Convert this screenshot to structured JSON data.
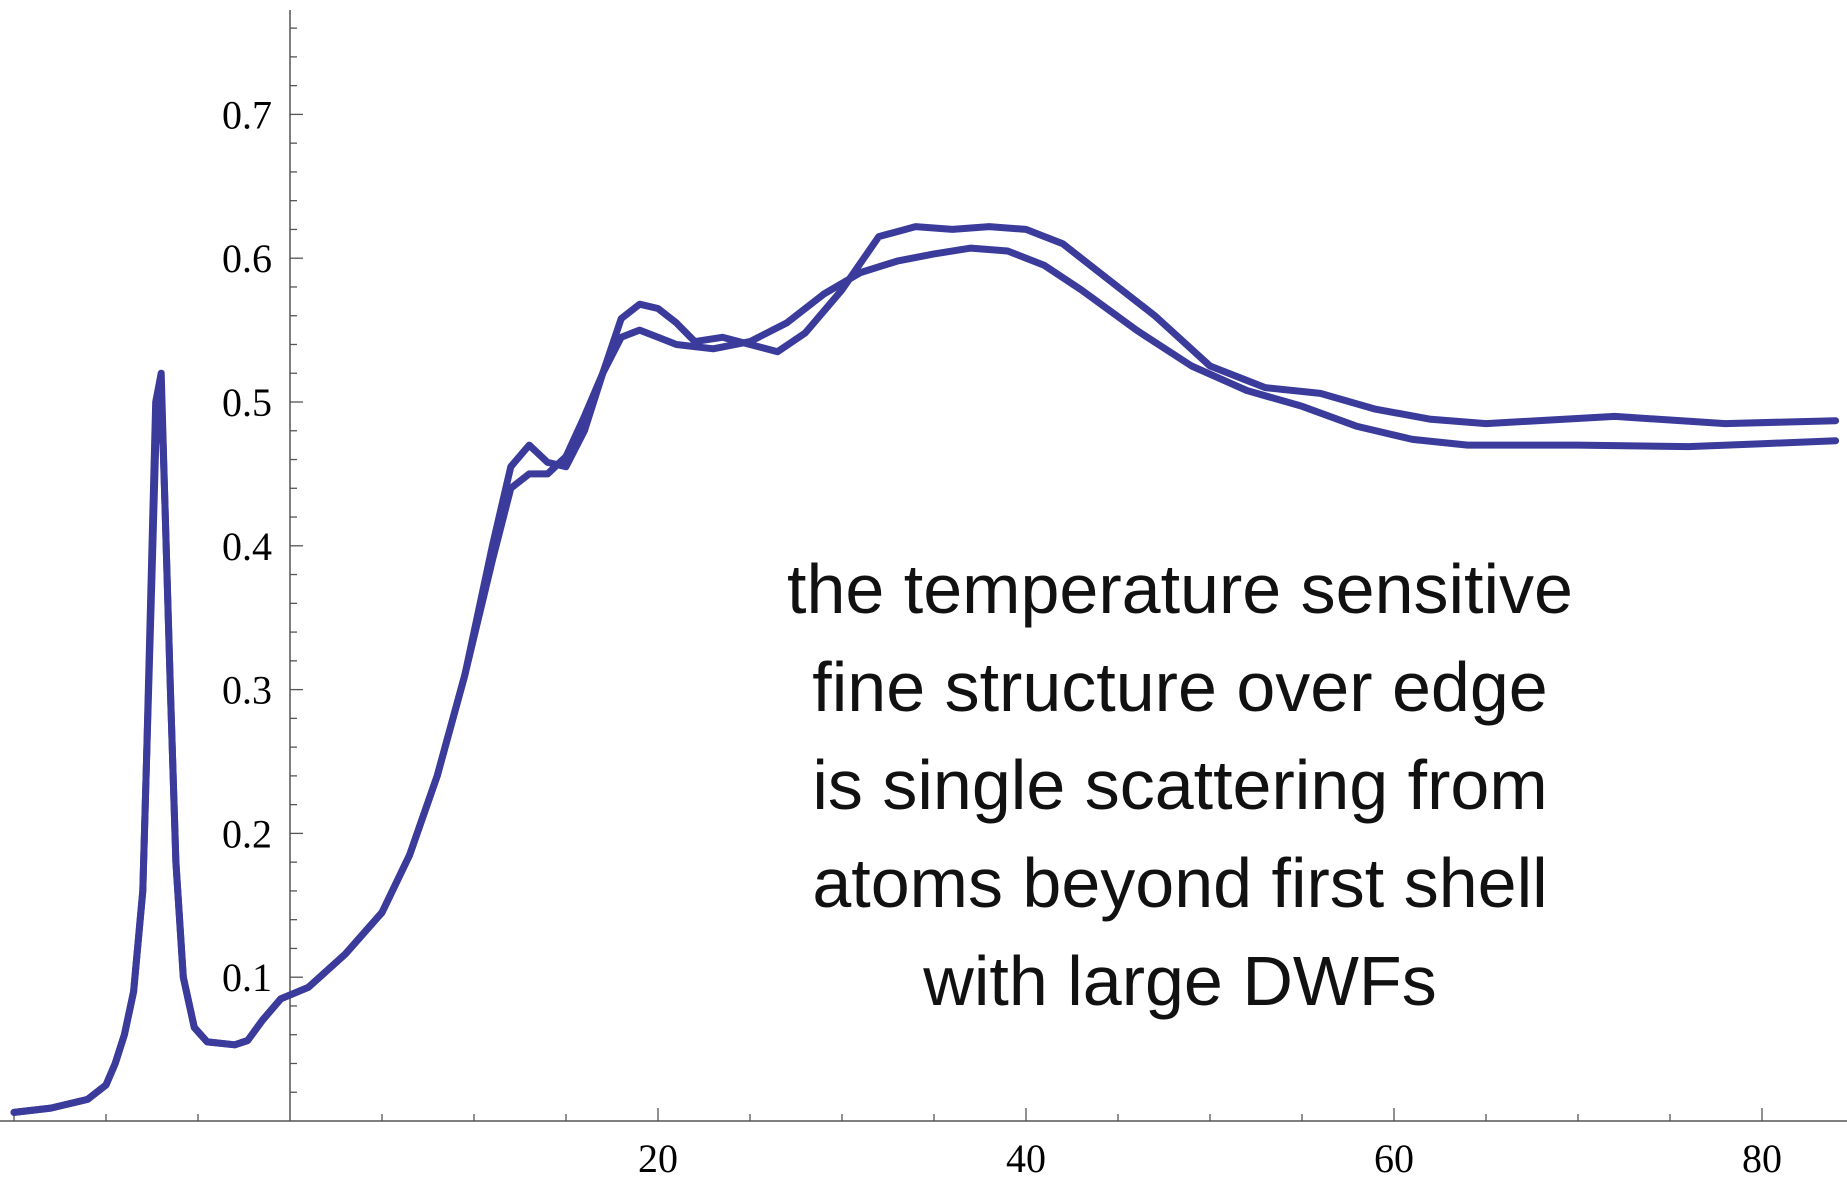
{
  "chart_data": {
    "type": "line",
    "title": "",
    "xlabel": "",
    "ylabel": "",
    "xlim": [
      -15,
      84
    ],
    "ylim": [
      0,
      0.77
    ],
    "x_ticks": [
      20,
      40,
      60,
      80
    ],
    "y_ticks": [
      0.1,
      0.2,
      0.3,
      0.4,
      0.5,
      0.6,
      0.7
    ],
    "line_color": "#3b3b9c",
    "grid": false,
    "legend": "none",
    "series": [
      {
        "points": [
          [
            -15,
            0.006
          ],
          [
            -13,
            0.009
          ],
          [
            -11,
            0.015
          ],
          [
            -10,
            0.025
          ],
          [
            -9.5,
            0.04
          ],
          [
            -9,
            0.06
          ],
          [
            -8.5,
            0.09
          ],
          [
            -8,
            0.16
          ],
          [
            -7.8,
            0.25
          ],
          [
            -7.5,
            0.38
          ],
          [
            -7.3,
            0.47
          ],
          [
            -7,
            0.51
          ],
          [
            -6.8,
            0.43
          ],
          [
            -6.5,
            0.3
          ],
          [
            -6.2,
            0.18
          ],
          [
            -5.8,
            0.1
          ],
          [
            -5.2,
            0.065
          ],
          [
            -4.5,
            0.055
          ],
          [
            -3,
            0.053
          ],
          [
            -2.3,
            0.056
          ],
          [
            -1.5,
            0.07
          ],
          [
            -0.5,
            0.085
          ],
          [
            1,
            0.093
          ],
          [
            3,
            0.116
          ],
          [
            5,
            0.145
          ],
          [
            6.5,
            0.185
          ],
          [
            8,
            0.24
          ],
          [
            9.5,
            0.31
          ],
          [
            11,
            0.39
          ],
          [
            12,
            0.44
          ],
          [
            13,
            0.45
          ],
          [
            14,
            0.45
          ],
          [
            15,
            0.462
          ],
          [
            16,
            0.49
          ],
          [
            17,
            0.52
          ],
          [
            18,
            0.545
          ],
          [
            19,
            0.55
          ],
          [
            20,
            0.545
          ],
          [
            21,
            0.54
          ],
          [
            23,
            0.537
          ],
          [
            25,
            0.542
          ],
          [
            27,
            0.555
          ],
          [
            29,
            0.575
          ],
          [
            31,
            0.59
          ],
          [
            33,
            0.598
          ],
          [
            35,
            0.603
          ],
          [
            37,
            0.607
          ],
          [
            39,
            0.605
          ],
          [
            41,
            0.595
          ],
          [
            43,
            0.578
          ],
          [
            46,
            0.55
          ],
          [
            49,
            0.525
          ],
          [
            52,
            0.508
          ],
          [
            55,
            0.497
          ],
          [
            58,
            0.483
          ],
          [
            61,
            0.474
          ],
          [
            64,
            0.47
          ],
          [
            70,
            0.47
          ],
          [
            76,
            0.469
          ],
          [
            80,
            0.471
          ],
          [
            84,
            0.473
          ]
        ]
      },
      {
        "points": [
          [
            -15,
            0.006
          ],
          [
            -13,
            0.009
          ],
          [
            -11,
            0.015
          ],
          [
            -10,
            0.025
          ],
          [
            -9.5,
            0.04
          ],
          [
            -9,
            0.06
          ],
          [
            -8.5,
            0.09
          ],
          [
            -8,
            0.16
          ],
          [
            -7.8,
            0.25
          ],
          [
            -7.5,
            0.4
          ],
          [
            -7.3,
            0.5
          ],
          [
            -7,
            0.52
          ],
          [
            -6.8,
            0.43
          ],
          [
            -6.5,
            0.3
          ],
          [
            -6.2,
            0.18
          ],
          [
            -5.8,
            0.1
          ],
          [
            -5.2,
            0.065
          ],
          [
            -4.5,
            0.055
          ],
          [
            -3,
            0.053
          ],
          [
            -2.3,
            0.056
          ],
          [
            -1.5,
            0.07
          ],
          [
            -0.5,
            0.085
          ],
          [
            1,
            0.093
          ],
          [
            3,
            0.116
          ],
          [
            5,
            0.145
          ],
          [
            6.5,
            0.185
          ],
          [
            8,
            0.24
          ],
          [
            9.5,
            0.31
          ],
          [
            11,
            0.4
          ],
          [
            12,
            0.455
          ],
          [
            13,
            0.47
          ],
          [
            14,
            0.458
          ],
          [
            15,
            0.455
          ],
          [
            16,
            0.48
          ],
          [
            17,
            0.52
          ],
          [
            18,
            0.558
          ],
          [
            19,
            0.568
          ],
          [
            20,
            0.565
          ],
          [
            21,
            0.555
          ],
          [
            22,
            0.542
          ],
          [
            23.5,
            0.545
          ],
          [
            25,
            0.54
          ],
          [
            26.5,
            0.535
          ],
          [
            28,
            0.548
          ],
          [
            30,
            0.578
          ],
          [
            32,
            0.615
          ],
          [
            34,
            0.622
          ],
          [
            36,
            0.62
          ],
          [
            38,
            0.622
          ],
          [
            40,
            0.62
          ],
          [
            42,
            0.61
          ],
          [
            44,
            0.59
          ],
          [
            47,
            0.56
          ],
          [
            50,
            0.525
          ],
          [
            53,
            0.51
          ],
          [
            56,
            0.506
          ],
          [
            59,
            0.495
          ],
          [
            62,
            0.488
          ],
          [
            65,
            0.485
          ],
          [
            72,
            0.49
          ],
          [
            78,
            0.485
          ],
          [
            84,
            0.487
          ]
        ]
      }
    ],
    "annotation": [
      "the temperature sensitive",
      "fine structure over edge",
      "is single scattering from",
      "atoms beyond first shell",
      "with large DWFs"
    ]
  }
}
